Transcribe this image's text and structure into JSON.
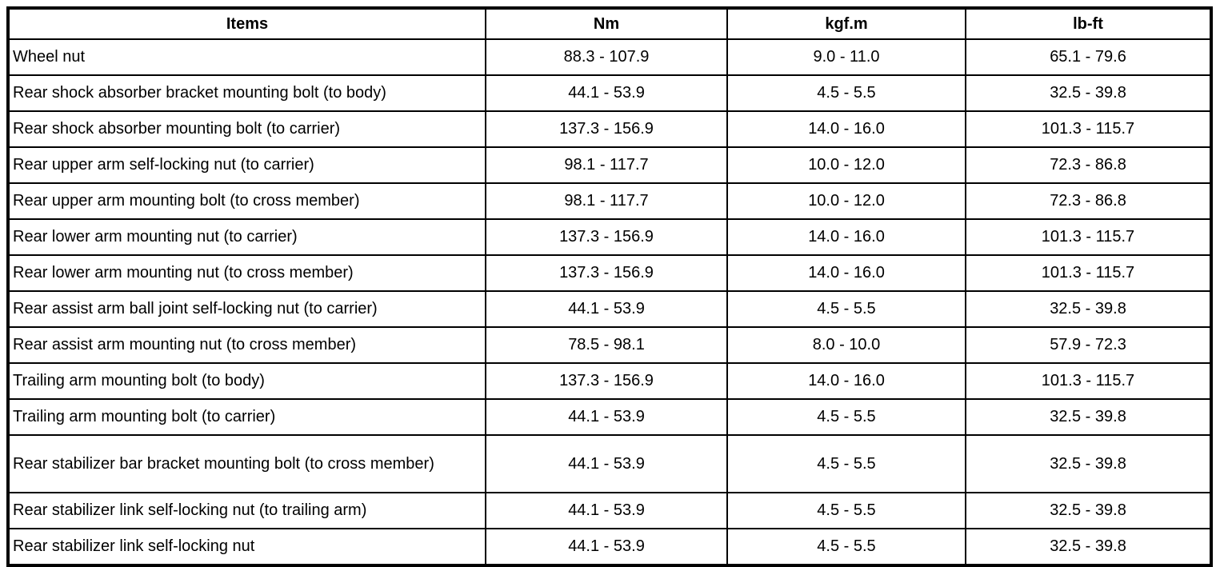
{
  "page": {
    "background_color": "#ffffff",
    "text_color": "#000000",
    "border_color": "#000000"
  },
  "table": {
    "columns": [
      {
        "key": "item",
        "label": "Items"
      },
      {
        "key": "nm",
        "label": "Nm"
      },
      {
        "key": "kgfm",
        "label": "kgf.m"
      },
      {
        "key": "lbft",
        "label": "lb-ft"
      }
    ],
    "rows": [
      {
        "item": "Wheel nut",
        "nm": "88.3 - 107.9",
        "kgfm": "9.0 - 11.0",
        "lbft": "65.1 - 79.6"
      },
      {
        "item": "Rear shock absorber bracket mounting bolt (to body)",
        "nm": "44.1 - 53.9",
        "kgfm": "4.5 - 5.5",
        "lbft": "32.5 - 39.8"
      },
      {
        "item": "Rear shock absorber mounting bolt (to carrier)",
        "nm": "137.3 - 156.9",
        "kgfm": "14.0 - 16.0",
        "lbft": "101.3 - 115.7"
      },
      {
        "item": "Rear upper arm self-locking nut (to carrier)",
        "nm": "98.1 - 117.7",
        "kgfm": "10.0 - 12.0",
        "lbft": "72.3 - 86.8"
      },
      {
        "item": "Rear upper arm mounting bolt (to cross member)",
        "nm": "98.1 - 117.7",
        "kgfm": "10.0 - 12.0",
        "lbft": "72.3 - 86.8"
      },
      {
        "item": "Rear lower arm mounting nut (to carrier)",
        "nm": "137.3 - 156.9",
        "kgfm": "14.0 - 16.0",
        "lbft": "101.3 - 115.7"
      },
      {
        "item": "Rear lower arm mounting nut (to cross member)",
        "nm": "137.3 - 156.9",
        "kgfm": "14.0 - 16.0",
        "lbft": "101.3 - 115.7"
      },
      {
        "item": "Rear assist arm ball joint self-locking nut (to carrier)",
        "nm": "44.1 - 53.9",
        "kgfm": "4.5 - 5.5",
        "lbft": "32.5 - 39.8"
      },
      {
        "item": "Rear assist arm mounting nut (to cross member)",
        "nm": "78.5 - 98.1",
        "kgfm": "8.0 - 10.0",
        "lbft": "57.9 - 72.3"
      },
      {
        "item": "Trailing arm mounting bolt (to body)",
        "nm": "137.3 - 156.9",
        "kgfm": "14.0 - 16.0",
        "lbft": "101.3 - 115.7"
      },
      {
        "item": "Trailing arm mounting bolt (to carrier)",
        "nm": "44.1 - 53.9",
        "kgfm": "4.5 - 5.5",
        "lbft": "32.5 - 39.8"
      },
      {
        "item": "Rear stabilizer bar bracket mounting bolt (to cross member)",
        "nm": "44.1 - 53.9",
        "kgfm": "4.5 - 5.5",
        "lbft": "32.5 - 39.8",
        "tall": true
      },
      {
        "item": "Rear stabilizer link self-locking nut (to trailing arm)",
        "nm": "44.1 - 53.9",
        "kgfm": "4.5 - 5.5",
        "lbft": "32.5 - 39.8"
      },
      {
        "item": "Rear stabilizer link self-locking nut",
        "nm": "44.1 - 53.9",
        "kgfm": "4.5 - 5.5",
        "lbft": "32.5 - 39.8"
      }
    ]
  },
  "chart_data": {
    "type": "table",
    "columns": [
      "Items",
      "Nm",
      "kgf.m",
      "lb-ft"
    ],
    "rows": [
      [
        "Wheel nut",
        "88.3 - 107.9",
        "9.0 - 11.0",
        "65.1 - 79.6"
      ],
      [
        "Rear shock absorber bracket mounting bolt (to body)",
        "44.1 - 53.9",
        "4.5 - 5.5",
        "32.5 - 39.8"
      ],
      [
        "Rear shock absorber mounting bolt (to carrier)",
        "137.3 - 156.9",
        "14.0 - 16.0",
        "101.3 - 115.7"
      ],
      [
        "Rear upper arm self-locking nut (to carrier)",
        "98.1 - 117.7",
        "10.0 - 12.0",
        "72.3 - 86.8"
      ],
      [
        "Rear upper arm mounting bolt (to cross member)",
        "98.1 - 117.7",
        "10.0 - 12.0",
        "72.3 - 86.8"
      ],
      [
        "Rear lower arm mounting nut (to carrier)",
        "137.3 - 156.9",
        "14.0 - 16.0",
        "101.3 - 115.7"
      ],
      [
        "Rear lower arm mounting nut (to cross member)",
        "137.3 - 156.9",
        "14.0 - 16.0",
        "101.3 - 115.7"
      ],
      [
        "Rear assist arm ball joint self-locking nut (to carrier)",
        "44.1 - 53.9",
        "4.5 - 5.5",
        "32.5 - 39.8"
      ],
      [
        "Rear assist arm mounting nut (to cross member)",
        "78.5 - 98.1",
        "8.0 - 10.0",
        "57.9 - 72.3"
      ],
      [
        "Trailing arm mounting bolt (to body)",
        "137.3 - 156.9",
        "14.0 - 16.0",
        "101.3 - 115.7"
      ],
      [
        "Trailing arm mounting bolt (to carrier)",
        "44.1 - 53.9",
        "4.5 - 5.5",
        "32.5 - 39.8"
      ],
      [
        "Rear stabilizer bar bracket mounting bolt (to cross member)",
        "44.1 - 53.9",
        "4.5 - 5.5",
        "32.5 - 39.8"
      ],
      [
        "Rear stabilizer link self-locking nut (to trailing arm)",
        "44.1 - 53.9",
        "4.5 - 5.5",
        "32.5 - 39.8"
      ],
      [
        "Rear stabilizer link self-locking nut",
        "44.1 - 53.9",
        "4.5 - 5.5",
        "32.5 - 39.8"
      ]
    ]
  }
}
